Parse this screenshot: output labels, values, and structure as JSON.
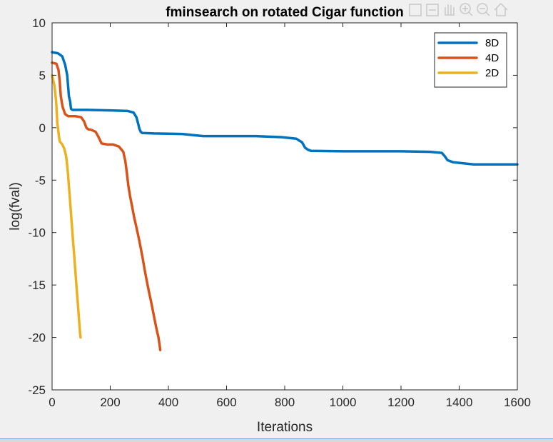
{
  "toolbar": {
    "icons": [
      "save-icon",
      "data-cursor-icon",
      "pan-icon",
      "zoom-in-icon",
      "zoom-out-icon",
      "home-icon"
    ]
  },
  "chart_data": {
    "type": "line",
    "title": "fminsearch on rotated Cigar function",
    "xlabel": "Iterations",
    "ylabel": "log(fval)",
    "xlim": [
      0,
      1600
    ],
    "ylim": [
      -25,
      10
    ],
    "xticks": [
      0,
      200,
      400,
      600,
      800,
      1000,
      1200,
      1400,
      1600
    ],
    "yticks": [
      10,
      5,
      0,
      -5,
      -10,
      -15,
      -20,
      -25
    ],
    "grid": false,
    "legend": {
      "placement": "top-right",
      "entries": [
        "8D",
        "4D",
        "2D"
      ]
    },
    "series": [
      {
        "name": "8D",
        "color": "#0072bd",
        "points": [
          [
            0,
            7.2
          ],
          [
            20,
            7.1
          ],
          [
            35,
            6.8
          ],
          [
            45,
            6.0
          ],
          [
            52,
            5.0
          ],
          [
            55,
            4.0
          ],
          [
            58,
            3.0
          ],
          [
            62,
            2.5
          ],
          [
            65,
            1.8
          ],
          [
            70,
            1.7
          ],
          [
            120,
            1.7
          ],
          [
            200,
            1.65
          ],
          [
            260,
            1.6
          ],
          [
            280,
            1.45
          ],
          [
            290,
            1.0
          ],
          [
            296,
            0.4
          ],
          [
            300,
            -0.1
          ],
          [
            305,
            -0.4
          ],
          [
            310,
            -0.5
          ],
          [
            350,
            -0.55
          ],
          [
            450,
            -0.6
          ],
          [
            520,
            -0.8
          ],
          [
            600,
            -0.8
          ],
          [
            700,
            -0.8
          ],
          [
            790,
            -0.9
          ],
          [
            840,
            -1.05
          ],
          [
            860,
            -1.4
          ],
          [
            870,
            -1.9
          ],
          [
            880,
            -2.1
          ],
          [
            890,
            -2.2
          ],
          [
            1000,
            -2.25
          ],
          [
            1100,
            -2.25
          ],
          [
            1200,
            -2.25
          ],
          [
            1300,
            -2.3
          ],
          [
            1340,
            -2.4
          ],
          [
            1350,
            -2.7
          ],
          [
            1360,
            -3.1
          ],
          [
            1380,
            -3.3
          ],
          [
            1450,
            -3.5
          ],
          [
            1600,
            -3.5
          ]
        ]
      },
      {
        "name": "4D",
        "color": "#d95319",
        "points": [
          [
            0,
            6.2
          ],
          [
            15,
            6.1
          ],
          [
            22,
            5.5
          ],
          [
            26,
            4.5
          ],
          [
            30,
            3.0
          ],
          [
            36,
            2.0
          ],
          [
            45,
            1.3
          ],
          [
            55,
            1.1
          ],
          [
            80,
            1.1
          ],
          [
            100,
            1.0
          ],
          [
            110,
            0.6
          ],
          [
            118,
            0.0
          ],
          [
            125,
            -0.15
          ],
          [
            135,
            -0.2
          ],
          [
            150,
            -0.4
          ],
          [
            160,
            -0.9
          ],
          [
            170,
            -1.5
          ],
          [
            190,
            -1.6
          ],
          [
            210,
            -1.6
          ],
          [
            230,
            -1.8
          ],
          [
            245,
            -2.3
          ],
          [
            252,
            -3.2
          ],
          [
            258,
            -4.5
          ],
          [
            262,
            -5.5
          ],
          [
            268,
            -6.5
          ],
          [
            275,
            -7.5
          ],
          [
            282,
            -8.5
          ],
          [
            290,
            -9.5
          ],
          [
            298,
            -10.5
          ],
          [
            305,
            -11.5
          ],
          [
            312,
            -12.5
          ],
          [
            318,
            -13.5
          ],
          [
            325,
            -14.5
          ],
          [
            332,
            -15.5
          ],
          [
            340,
            -16.5
          ],
          [
            347,
            -17.5
          ],
          [
            354,
            -18.5
          ],
          [
            360,
            -19.3
          ],
          [
            366,
            -20.0
          ],
          [
            370,
            -20.8
          ],
          [
            372,
            -21.2
          ]
        ]
      },
      {
        "name": "2D",
        "color": "#edb120",
        "points": [
          [
            0,
            5.0
          ],
          [
            8,
            4.0
          ],
          [
            14,
            2.5
          ],
          [
            18,
            0.5
          ],
          [
            22,
            -0.5
          ],
          [
            26,
            -1.3
          ],
          [
            35,
            -1.6
          ],
          [
            42,
            -2.0
          ],
          [
            48,
            -2.7
          ],
          [
            52,
            -3.6
          ],
          [
            55,
            -4.5
          ],
          [
            58,
            -5.6
          ],
          [
            61,
            -6.7
          ],
          [
            64,
            -7.8
          ],
          [
            67,
            -8.9
          ],
          [
            70,
            -10.0
          ],
          [
            73,
            -11.1
          ],
          [
            76,
            -12.2
          ],
          [
            79,
            -13.3
          ],
          [
            82,
            -14.4
          ],
          [
            85,
            -15.5
          ],
          [
            88,
            -16.6
          ],
          [
            91,
            -17.7
          ],
          [
            94,
            -18.8
          ],
          [
            96,
            -19.5
          ],
          [
            98,
            -20.0
          ]
        ]
      }
    ]
  }
}
